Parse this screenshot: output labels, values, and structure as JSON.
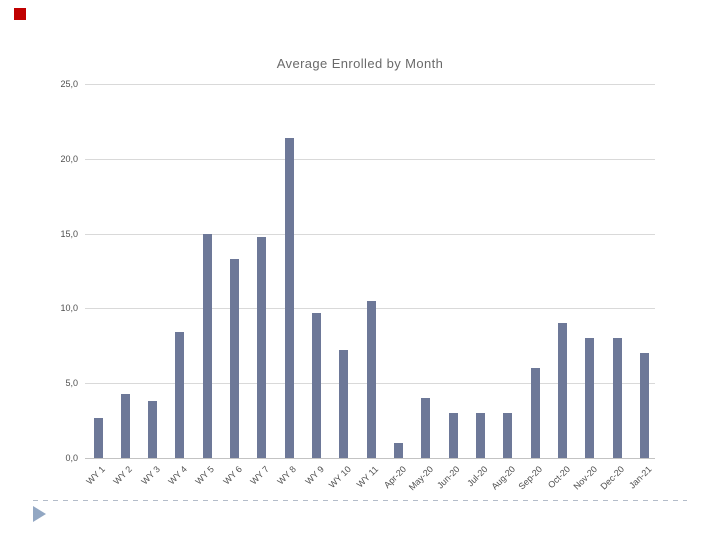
{
  "slide": {
    "markers": {
      "red_square_color": "#c00000",
      "bullet_arrow_color": "#92a7c3",
      "divider_color": "#b3bcc9"
    }
  },
  "chart_data": {
    "type": "bar",
    "title": "Average Enrolled by Month",
    "categories": [
      "WY 1",
      "WY 2",
      "WY 3",
      "WY 4",
      "WY 5",
      "WY 6",
      "WY 7",
      "WY 8",
      "WY 9",
      "WY 10",
      "WY 11",
      "Apr-20",
      "May-20",
      "Jun-20",
      "Jul-20",
      "Aug-20",
      "Sep-20",
      "Oct-20",
      "Nov-20",
      "Dec-20",
      "Jan-21"
    ],
    "values": [
      2.7,
      4.3,
      3.8,
      8.4,
      15.0,
      13.3,
      14.8,
      21.4,
      9.7,
      7.2,
      10.5,
      1.0,
      4.0,
      3.0,
      3.0,
      3.0,
      6.0,
      9.0,
      8.0,
      8.0,
      7.0
    ],
    "xlabel": "",
    "ylabel": "",
    "ylim": [
      0,
      25
    ],
    "y_tick_values": [
      0,
      5,
      10,
      15,
      20,
      25
    ],
    "y_tick_labels": [
      "0,0",
      "5,0",
      "10,0",
      "15,0",
      "20,0",
      "25,0"
    ],
    "grid": true,
    "legend": false,
    "bar_color": "#6d7898",
    "title_color": "#6a6a6a",
    "tick_label_color": "#4f4f4f",
    "gridline_color": "#d9d9d9",
    "axis_line_color": "#c3c3c3"
  }
}
